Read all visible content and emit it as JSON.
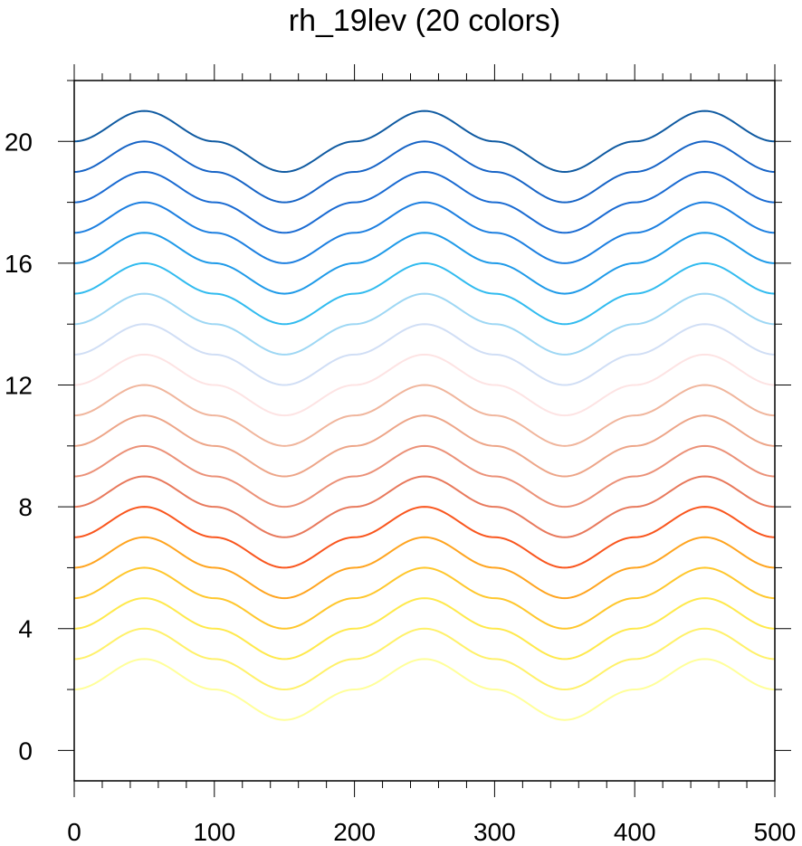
{
  "chart_data": {
    "type": "line",
    "title": "rh_19lev (20 colors)",
    "xlabel": "",
    "ylabel": "",
    "xlim": [
      0,
      500
    ],
    "ylim": [
      -1,
      22
    ],
    "grid": false,
    "legend": "none",
    "x_ticks": [
      "0",
      "100",
      "200",
      "300",
      "400",
      "500"
    ],
    "y_ticks": [
      "0",
      "4",
      "8",
      "12",
      "16",
      "20"
    ],
    "x_values": [
      0,
      50,
      100,
      150,
      200,
      250,
      300,
      350,
      400,
      450,
      500
    ],
    "series": [
      {
        "color": "#ffff9a",
        "values": [
          2,
          3,
          2,
          1,
          2,
          3,
          2,
          1,
          2,
          3,
          2
        ]
      },
      {
        "color": "#fff16a",
        "values": [
          3,
          4,
          3,
          2,
          3,
          4,
          3,
          2,
          3,
          4,
          3
        ]
      },
      {
        "color": "#ffe94c",
        "values": [
          4,
          5,
          4,
          3,
          4,
          5,
          4,
          3,
          4,
          5,
          4
        ]
      },
      {
        "color": "#ffc72c",
        "values": [
          5,
          6,
          5,
          4,
          5,
          6,
          5,
          4,
          5,
          6,
          5
        ]
      },
      {
        "color": "#ffa41f",
        "values": [
          6,
          7,
          6,
          5,
          6,
          7,
          6,
          5,
          6,
          7,
          6
        ]
      },
      {
        "color": "#f9561e",
        "values": [
          7,
          8,
          7,
          6,
          7,
          8,
          7,
          6,
          7,
          8,
          7
        ]
      },
      {
        "color": "#e8795c",
        "values": [
          8,
          9,
          8,
          7,
          8,
          9,
          8,
          7,
          8,
          9,
          8
        ]
      },
      {
        "color": "#eb9178",
        "values": [
          9,
          10,
          9,
          8,
          9,
          10,
          9,
          8,
          9,
          10,
          9
        ]
      },
      {
        "color": "#eda588",
        "values": [
          10,
          11,
          10,
          9,
          10,
          11,
          10,
          9,
          10,
          11,
          10
        ]
      },
      {
        "color": "#f0b59c",
        "values": [
          11,
          12,
          11,
          10,
          11,
          12,
          11,
          10,
          11,
          12,
          11
        ]
      },
      {
        "color": "#fde3e3",
        "values": [
          12,
          13,
          12,
          11,
          12,
          13,
          12,
          11,
          12,
          13,
          12
        ]
      },
      {
        "color": "#d0def5",
        "values": [
          13,
          14,
          13,
          12,
          13,
          14,
          13,
          12,
          13,
          14,
          13
        ]
      },
      {
        "color": "#9ed7f4",
        "values": [
          14,
          15,
          14,
          13,
          14,
          15,
          14,
          13,
          14,
          15,
          14
        ]
      },
      {
        "color": "#31bbef",
        "values": [
          15,
          16,
          15,
          14,
          15,
          16,
          15,
          14,
          15,
          16,
          15
        ]
      },
      {
        "color": "#1e9ae8",
        "values": [
          16,
          17,
          16,
          15,
          16,
          17,
          16,
          15,
          16,
          17,
          16
        ]
      },
      {
        "color": "#1c7fe0",
        "values": [
          17,
          18,
          17,
          16,
          17,
          18,
          17,
          16,
          17,
          18,
          17
        ]
      },
      {
        "color": "#1a6bd2",
        "values": [
          18,
          19,
          18,
          17,
          18,
          19,
          18,
          17,
          18,
          19,
          18
        ]
      },
      {
        "color": "#1764c6",
        "values": [
          19,
          20,
          19,
          18,
          19,
          20,
          19,
          18,
          19,
          20,
          19
        ]
      },
      {
        "color": "#0f5aa1",
        "values": [
          20,
          21,
          20,
          19,
          20,
          21,
          20,
          19,
          20,
          21,
          20
        ]
      }
    ]
  }
}
